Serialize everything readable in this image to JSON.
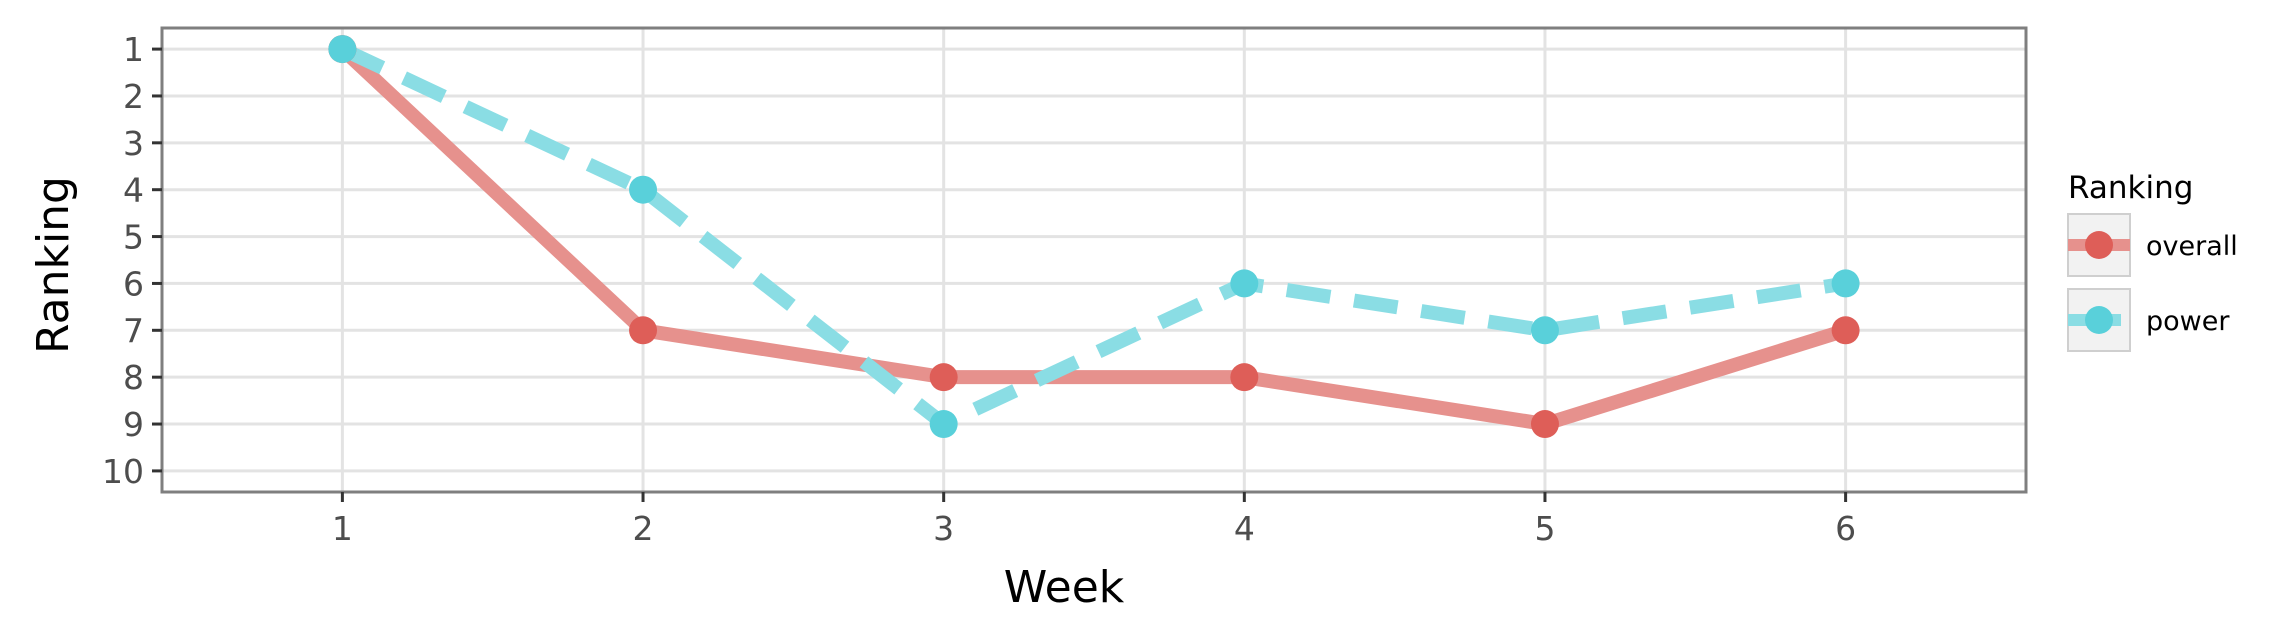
{
  "chart_data": {
    "type": "line",
    "xlabel": "Week",
    "ylabel": "Ranking",
    "x": [
      1,
      2,
      3,
      4,
      5,
      6
    ],
    "x_ticks": [
      "1",
      "2",
      "3",
      "4",
      "5",
      "6"
    ],
    "y_ticks": [
      "1",
      "2",
      "3",
      "4",
      "5",
      "6",
      "7",
      "8",
      "9",
      "10"
    ],
    "xlim": [
      0.4,
      6.6
    ],
    "ylim": [
      10.45,
      0.55
    ],
    "y_reversed": true,
    "grid": true,
    "legend": {
      "title": "Ranking",
      "placement": "right"
    },
    "series": [
      {
        "name": "overall",
        "values": [
          1,
          7,
          8,
          8,
          9,
          7
        ],
        "line_color": "#e6918d",
        "point_color": "#de5e58",
        "dash": "solid"
      },
      {
        "name": "power",
        "values": [
          1,
          4,
          9,
          6,
          7,
          6
        ],
        "line_color": "#8adde4",
        "point_color": "#59d0da",
        "dash": "dashed"
      }
    ]
  }
}
